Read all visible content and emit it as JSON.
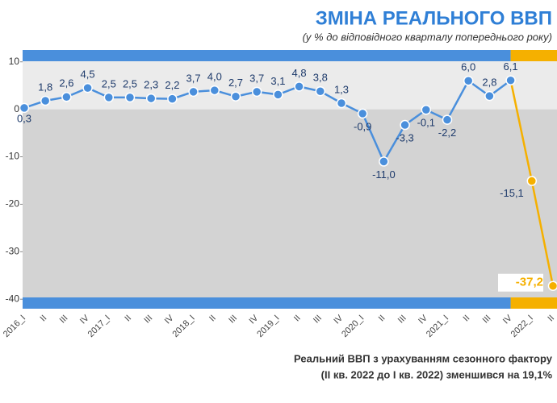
{
  "chart_data": {
    "type": "line",
    "title": "ЗМІНА РЕАЛЬНОГО ВВП",
    "subtitle": "(у % до відповідного кварталу попереднього року)",
    "note": [
      "Реальний ВВП з урахуванням сезонного фактору",
      "(II кв. 2022 до I кв. 2022) зменшився на 19,1%"
    ],
    "categories": [
      "2016_I",
      "II",
      "III",
      "IV",
      "2017_I",
      "II",
      "III",
      "IV",
      "2018_I",
      "II",
      "III",
      "IV",
      "2019_I",
      "II",
      "III",
      "IV",
      "2020_I",
      "II",
      "III",
      "IV",
      "2021_I",
      "II",
      "III",
      "IV",
      "2022_I",
      "II"
    ],
    "values": [
      0.3,
      1.8,
      2.6,
      4.5,
      2.5,
      2.5,
      2.3,
      2.2,
      3.7,
      4.0,
      2.7,
      3.7,
      3.1,
      4.8,
      3.8,
      1.3,
      -0.9,
      -11.0,
      -3.3,
      -0.1,
      -2.2,
      6.0,
      2.8,
      6.1,
      -15.1,
      -37.2
    ],
    "value_labels": [
      "0,3",
      "1,8",
      "2,6",
      "4,5",
      "2,5",
      "2,5",
      "2,3",
      "2,2",
      "3,7",
      "4,0",
      "2,7",
      "3,7",
      "3,1",
      "4,8",
      "3,8",
      "1,3",
      "-0,9",
      "-11,0",
      "-3,3",
      "-0,1",
      "-2,2",
      "6,0",
      "2,8",
      "6,1",
      "-15,1",
      "-37,2"
    ],
    "colors": [
      "#4a8fdc",
      "#4a8fdc",
      "#4a8fdc",
      "#4a8fdc",
      "#4a8fdc",
      "#4a8fdc",
      "#4a8fdc",
      "#4a8fdc",
      "#4a8fdc",
      "#4a8fdc",
      "#4a8fdc",
      "#4a8fdc",
      "#4a8fdc",
      "#4a8fdc",
      "#4a8fdc",
      "#4a8fdc",
      "#4a8fdc",
      "#4a8fdc",
      "#4a8fdc",
      "#4a8fdc",
      "#4a8fdc",
      "#4a8fdc",
      "#4a8fdc",
      "#4a8fdc",
      "#f5b000",
      "#f5b000"
    ],
    "ylim": [
      -42,
      12.5
    ],
    "yticks": [
      10,
      0,
      -10,
      -20,
      -30,
      -40
    ]
  }
}
